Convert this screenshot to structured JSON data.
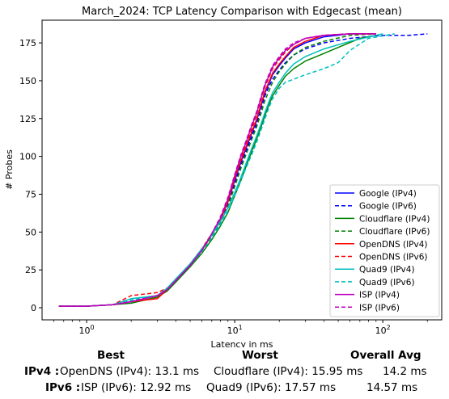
{
  "chart_data": {
    "type": "line",
    "title": "March_2024: TCP Latency Comparison with Edgecast (mean)",
    "xlabel": "Latency in ms",
    "ylabel": "# Probes",
    "x_scale": "log",
    "xlim": [
      0.5,
      250
    ],
    "ylim": [
      -8,
      190
    ],
    "x_ticks": [
      1,
      10,
      100
    ],
    "x_tick_labels": [
      "10^0",
      "10^1",
      "10^2"
    ],
    "y_ticks": [
      0,
      25,
      50,
      75,
      100,
      125,
      150,
      175
    ],
    "legend_position": "lower-right",
    "grid": false,
    "series": [
      {
        "name": "Google (IPv4)",
        "color": "#0000ff",
        "dash": "solid",
        "x": [
          0.65,
          1.0,
          1.5,
          2.0,
          3.0,
          3.5,
          4.0,
          5.0,
          6.0,
          7.0,
          8.0,
          9.0,
          10.0,
          11.0,
          12.0,
          13.0,
          14.0,
          15.0,
          16.0,
          17.0,
          18.0,
          20.0,
          22.0,
          25.0,
          30.0,
          40.0,
          60.0,
          90.0
        ],
        "y": [
          1,
          1,
          2,
          4,
          8,
          12,
          18,
          28,
          38,
          48,
          58,
          70,
          84,
          96,
          106,
          115,
          123,
          133,
          142,
          148,
          154,
          160,
          165,
          171,
          175,
          179,
          181,
          181
        ]
      },
      {
        "name": "Google (IPv6)",
        "color": "#0000ff",
        "dash": "dashed",
        "x": [
          0.65,
          1.0,
          1.5,
          2.0,
          3.0,
          3.5,
          4.0,
          5.0,
          6.0,
          7.0,
          8.0,
          9.0,
          10.0,
          11.0,
          12.0,
          13.0,
          14.0,
          15.0,
          16.0,
          17.0,
          18.0,
          20.0,
          22.0,
          25.0,
          30.0,
          40.0,
          60.0,
          100.0,
          150.0,
          200.0
        ],
        "y": [
          1,
          1,
          2,
          4,
          8,
          12,
          18,
          28,
          38,
          48,
          57,
          69,
          82,
          94,
          104,
          113,
          121,
          131,
          140,
          146,
          151,
          157,
          162,
          167,
          171,
          175,
          178,
          180,
          180,
          181
        ]
      },
      {
        "name": "Cloudflare (IPv4)",
        "color": "#008000",
        "dash": "solid",
        "x": [
          0.65,
          1.0,
          1.5,
          2.0,
          3.0,
          3.5,
          4.0,
          5.0,
          6.0,
          7.0,
          8.0,
          9.0,
          10.0,
          11.0,
          12.0,
          13.0,
          14.0,
          15.0,
          16.0,
          17.0,
          18.0,
          20.0,
          22.0,
          25.0,
          30.0,
          40.0,
          50.0,
          70.0,
          90.0
        ],
        "y": [
          1,
          1,
          2,
          3,
          7,
          11,
          17,
          27,
          36,
          45,
          54,
          63,
          74,
          84,
          94,
          103,
          111,
          119,
          127,
          134,
          140,
          147,
          153,
          158,
          163,
          168,
          172,
          178,
          180
        ]
      },
      {
        "name": "Cloudflare (IPv6)",
        "color": "#008000",
        "dash": "dashed",
        "x": [
          0.65,
          1.0,
          1.5,
          2.0,
          3.0,
          3.5,
          4.0,
          5.0,
          6.0,
          7.0,
          8.0,
          9.0,
          10.0,
          11.0,
          12.0,
          13.0,
          14.0,
          15.0,
          16.0,
          17.0,
          18.0,
          20.0,
          22.0,
          25.0,
          30.0,
          40.0,
          60.0,
          90.0
        ],
        "y": [
          1,
          1,
          2,
          4,
          8,
          12,
          18,
          28,
          37,
          47,
          56,
          67,
          80,
          92,
          102,
          111,
          119,
          128,
          137,
          143,
          149,
          156,
          161,
          167,
          172,
          176,
          180,
          181
        ]
      },
      {
        "name": "OpenDNS (IPv4)",
        "color": "#ff0000",
        "dash": "solid",
        "x": [
          0.65,
          1.0,
          1.5,
          2.0,
          3.0,
          3.5,
          4.0,
          5.0,
          6.0,
          7.0,
          8.0,
          9.0,
          10.0,
          11.0,
          12.0,
          13.0,
          14.0,
          15.0,
          16.0,
          17.0,
          18.0,
          20.0,
          22.0,
          25.0,
          30.0,
          40.0,
          60.0,
          90.0
        ],
        "y": [
          1,
          1,
          2,
          4,
          6,
          12,
          18,
          28,
          38,
          48,
          58,
          70,
          85,
          97,
          107,
          116,
          124,
          134,
          143,
          149,
          155,
          161,
          166,
          172,
          176,
          180,
          181,
          181
        ]
      },
      {
        "name": "OpenDNS (IPv6)",
        "color": "#ff0000",
        "dash": "dashed",
        "x": [
          0.65,
          1.0,
          1.5,
          2.0,
          3.0,
          3.5,
          4.0,
          5.0,
          6.0,
          7.0,
          8.0,
          9.0,
          10.0,
          11.0,
          12.0,
          13.0,
          14.0,
          15.0,
          16.0,
          17.0,
          18.0,
          20.0,
          22.0,
          25.0,
          30.0,
          40.0,
          60.0,
          90.0
        ],
        "y": [
          1,
          1,
          2,
          8,
          10,
          13,
          19,
          29,
          39,
          49,
          59,
          72,
          87,
          99,
          109,
          118,
          127,
          137,
          146,
          152,
          158,
          164,
          169,
          174,
          178,
          180,
          181,
          181
        ]
      },
      {
        "name": "Quad9 (IPv4)",
        "color": "#00bfbf",
        "dash": "solid",
        "x": [
          0.65,
          1.0,
          1.5,
          2.0,
          3.0,
          3.5,
          4.0,
          5.0,
          6.0,
          7.0,
          8.0,
          9.0,
          10.0,
          11.0,
          12.0,
          13.0,
          14.0,
          15.0,
          16.0,
          17.0,
          18.0,
          20.0,
          22.0,
          25.0,
          30.0,
          40.0,
          60.0,
          100.0
        ],
        "y": [
          1,
          1,
          2,
          6,
          8,
          13,
          19,
          29,
          39,
          48,
          57,
          66,
          76,
          86,
          96,
          105,
          113,
          121,
          129,
          136,
          142,
          149,
          155,
          161,
          166,
          171,
          176,
          181
        ]
      },
      {
        "name": "Quad9 (IPv6)",
        "color": "#00bfbf",
        "dash": "dashed",
        "x": [
          0.65,
          1.0,
          1.5,
          2.0,
          3.0,
          3.5,
          4.0,
          5.0,
          6.0,
          7.0,
          8.0,
          9.0,
          10.0,
          11.0,
          12.0,
          13.0,
          14.0,
          15.0,
          16.0,
          17.0,
          18.0,
          20.0,
          22.0,
          25.0,
          30.0,
          40.0,
          50.0,
          60.0,
          80.0,
          120.0
        ],
        "y": [
          1,
          1,
          2,
          5,
          8,
          12,
          18,
          28,
          37,
          46,
          55,
          64,
          74,
          84,
          93,
          101,
          109,
          117,
          125,
          132,
          138,
          145,
          149,
          151,
          154,
          158,
          162,
          170,
          178,
          181
        ]
      },
      {
        "name": "ISP (IPv4)",
        "color": "#bf00bf",
        "dash": "solid",
        "x": [
          0.65,
          1.0,
          1.5,
          2.0,
          3.0,
          3.5,
          4.0,
          5.0,
          6.0,
          7.0,
          8.0,
          9.0,
          10.0,
          11.0,
          12.0,
          13.0,
          14.0,
          15.0,
          16.0,
          17.0,
          18.0,
          20.0,
          22.0,
          25.0,
          30.0,
          40.0,
          60.0,
          90.0
        ],
        "y": [
          1,
          1,
          2,
          4,
          8,
          12,
          18,
          28,
          38,
          49,
          59,
          72,
          87,
          100,
          110,
          120,
          128,
          138,
          147,
          153,
          159,
          165,
          170,
          174,
          178,
          180,
          181,
          181
        ]
      },
      {
        "name": "ISP (IPv6)",
        "color": "#bf00bf",
        "dash": "dashed",
        "x": [
          0.65,
          1.0,
          1.5,
          2.0,
          3.0,
          3.5,
          4.0,
          5.0,
          6.0,
          7.0,
          8.0,
          9.0,
          10.0,
          11.0,
          12.0,
          13.0,
          14.0,
          15.0,
          16.0,
          17.0,
          18.0,
          20.0,
          22.0,
          25.0,
          30.0,
          40.0,
          60.0,
          90.0
        ],
        "y": [
          1,
          1,
          2,
          4,
          8,
          12,
          18,
          28,
          38,
          49,
          60,
          73,
          88,
          101,
          111,
          121,
          129,
          139,
          148,
          154,
          160,
          166,
          171,
          175,
          178,
          180,
          181,
          181
        ]
      }
    ]
  },
  "summary": {
    "headers": {
      "best": "Best",
      "worst": "Worst",
      "avg": "Overall Avg"
    },
    "rows": [
      {
        "label": "IPv4 :",
        "best": "OpenDNS (IPv4): 13.1 ms",
        "worst": "Cloudflare (IPv4): 15.95 ms",
        "avg": "14.2 ms"
      },
      {
        "label": "IPv6 :",
        "best": "ISP (IPv6): 12.92 ms",
        "worst": "Quad9 (IPv6): 17.57 ms",
        "avg": "14.57 ms"
      }
    ]
  }
}
